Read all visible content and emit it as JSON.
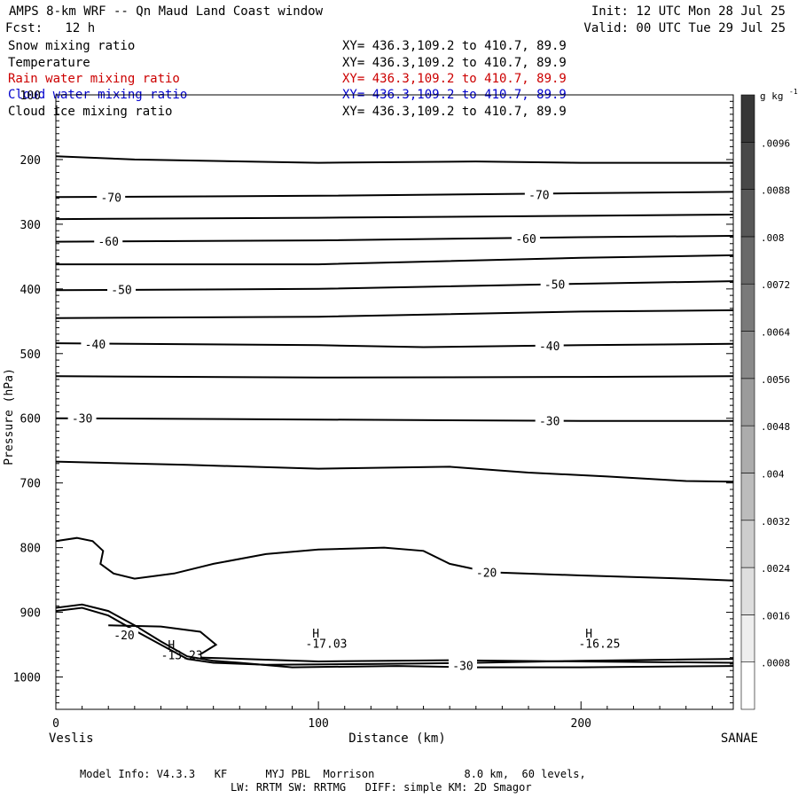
{
  "header": {
    "title": "AMPS 8-km WRF -- Qn Maud Land Coast window",
    "init": "Init: 12 UTC Mon 28 Jul 25",
    "fcst": "Fcst:   12 h",
    "valid": "Valid: 00 UTC Tue 29 Jul 25"
  },
  "fields": [
    {
      "name": "Snow mixing ratio",
      "xy": "XY= 436.3,109.2 to 410.7, 89.9",
      "color": "#000000"
    },
    {
      "name": "Temperature",
      "xy": "XY= 436.3,109.2 to 410.7, 89.9",
      "color": "#000000"
    },
    {
      "name": "Rain water mixing ratio",
      "xy": "XY= 436.3,109.2 to 410.7, 89.9",
      "color": "#cc0000"
    },
    {
      "name": "Cloud water mixing ratio",
      "xy": "XY= 436.3,109.2 to 410.7, 89.9",
      "color": "#0000cc"
    },
    {
      "name": "Cloud ice mixing ratio",
      "xy": "XY= 436.3,109.2 to 410.7, 89.9",
      "color": "#000000"
    }
  ],
  "footer": {
    "line1": "Model Info: V4.3.3   KF      MYJ PBL  Morrison              8.0 km,  60 levels,",
    "line2": "LW: RRTM SW: RRTMG   DIFF: simple KM: 2D Smagor"
  },
  "chart_data": {
    "type": "line",
    "xlabel": "Distance (km)",
    "ylabel": "Pressure (hPa)",
    "xlim": [
      0,
      258
    ],
    "ylim": [
      1050,
      100
    ],
    "x_ticks": [
      0,
      100,
      200
    ],
    "y_ticks": [
      100,
      200,
      300,
      400,
      500,
      600,
      700,
      800,
      900,
      1000
    ],
    "endpoint_left": "Veslis",
    "endpoint_right": "SANAE",
    "colorbar": {
      "unit": "g kg",
      "unit_exp": "-1",
      "ticks": [
        ".0008",
        ".0016",
        ".0024",
        ".0032",
        ".004",
        ".0048",
        ".0056",
        ".0064",
        ".0072",
        ".008",
        ".0088",
        ".0096"
      ]
    },
    "isotherms": [
      {
        "points": [
          [
            0,
            195
          ],
          [
            30,
            200
          ],
          [
            100,
            205
          ],
          [
            160,
            203
          ],
          [
            200,
            205
          ],
          [
            258,
            205
          ]
        ]
      },
      {
        "points": [
          [
            0,
            258
          ],
          [
            100,
            256
          ],
          [
            200,
            252
          ],
          [
            258,
            250
          ]
        ],
        "label": "-70",
        "label_at": [
          [
            21,
            258
          ],
          [
            184,
            254
          ]
        ]
      },
      {
        "points": [
          [
            0,
            292
          ],
          [
            100,
            290
          ],
          [
            200,
            287
          ],
          [
            258,
            285
          ]
        ]
      },
      {
        "points": [
          [
            0,
            327
          ],
          [
            100,
            325
          ],
          [
            200,
            320
          ],
          [
            258,
            318
          ]
        ],
        "label": "-60",
        "label_at": [
          [
            20,
            326
          ],
          [
            179,
            322
          ]
        ]
      },
      {
        "points": [
          [
            0,
            362
          ],
          [
            100,
            362
          ],
          [
            200,
            352
          ],
          [
            258,
            348
          ]
        ]
      },
      {
        "points": [
          [
            0,
            402
          ],
          [
            100,
            400
          ],
          [
            200,
            392
          ],
          [
            258,
            388
          ]
        ],
        "label": "-50",
        "label_at": [
          [
            25,
            401
          ],
          [
            190,
            393
          ]
        ]
      },
      {
        "points": [
          [
            0,
            445
          ],
          [
            100,
            443
          ],
          [
            200,
            435
          ],
          [
            258,
            433
          ]
        ]
      },
      {
        "points": [
          [
            0,
            484
          ],
          [
            100,
            487
          ],
          [
            140,
            490
          ],
          [
            200,
            487
          ],
          [
            258,
            485
          ]
        ],
        "label": "-40",
        "label_at": [
          [
            15,
            485
          ],
          [
            188,
            488
          ]
        ]
      },
      {
        "points": [
          [
            0,
            535
          ],
          [
            100,
            537
          ],
          [
            200,
            536
          ],
          [
            258,
            535
          ]
        ]
      },
      {
        "points": [
          [
            0,
            600
          ],
          [
            100,
            602
          ],
          [
            200,
            604
          ],
          [
            258,
            604
          ]
        ],
        "label": "-30",
        "label_at": [
          [
            10,
            600
          ],
          [
            188,
            604
          ]
        ]
      },
      {
        "points": [
          [
            0,
            667
          ],
          [
            50,
            672
          ],
          [
            100,
            678
          ],
          [
            150,
            675
          ],
          [
            180,
            684
          ],
          [
            210,
            690
          ],
          [
            240,
            697
          ],
          [
            258,
            698
          ]
        ]
      },
      {
        "points": [
          [
            0,
            790
          ],
          [
            8,
            785
          ],
          [
            14,
            790
          ],
          [
            18,
            805
          ],
          [
            17,
            825
          ],
          [
            22,
            840
          ],
          [
            30,
            848
          ],
          [
            45,
            840
          ],
          [
            60,
            825
          ],
          [
            80,
            810
          ],
          [
            100,
            803
          ],
          [
            125,
            800
          ],
          [
            140,
            805
          ],
          [
            150,
            825
          ],
          [
            165,
            838
          ],
          [
            200,
            843
          ],
          [
            240,
            848
          ],
          [
            258,
            851
          ]
        ],
        "label": "-20",
        "label_at": [
          [
            164,
            838
          ]
        ]
      },
      {
        "points": [
          [
            0,
            893
          ],
          [
            10,
            888
          ],
          [
            20,
            898
          ],
          [
            30,
            920
          ],
          [
            40,
            945
          ],
          [
            50,
            968
          ],
          [
            60,
            975
          ],
          [
            70,
            978
          ],
          [
            90,
            985
          ],
          [
            130,
            983
          ],
          [
            160,
            985
          ],
          [
            200,
            985
          ],
          [
            258,
            983
          ]
        ]
      },
      {
        "points": [
          [
            0,
            898
          ],
          [
            10,
            893
          ],
          [
            20,
            905
          ],
          [
            30,
            928
          ],
          [
            40,
            950
          ],
          [
            50,
            972
          ],
          [
            60,
            978
          ],
          [
            80,
            981
          ],
          [
            120,
            980
          ],
          [
            160,
            978
          ],
          [
            200,
            975
          ],
          [
            258,
            972
          ]
        ],
        "label": "-20",
        "label_at": [
          [
            26,
            935
          ]
        ]
      },
      {
        "points": [
          [
            20,
            920
          ],
          [
            40,
            922
          ],
          [
            55,
            930
          ],
          [
            61,
            950
          ],
          [
            55,
            965
          ]
        ]
      },
      {
        "points": [
          [
            55,
            970
          ],
          [
            100,
            976
          ],
          [
            150,
            974
          ],
          [
            200,
            976
          ],
          [
            258,
            978
          ]
        ],
        "label": "-30",
        "label_at": [
          [
            155,
            982
          ]
        ]
      }
    ],
    "annotations": [
      {
        "text": "H",
        "x": 44,
        "y": 950
      },
      {
        "text": "-13.23",
        "x": 48,
        "y": 966
      },
      {
        "text": "H",
        "x": 99,
        "y": 932
      },
      {
        "text": "-17.03",
        "x": 103,
        "y": 948
      },
      {
        "text": "H",
        "x": 203,
        "y": 932
      },
      {
        "text": "-16.25",
        "x": 207,
        "y": 948
      }
    ]
  }
}
